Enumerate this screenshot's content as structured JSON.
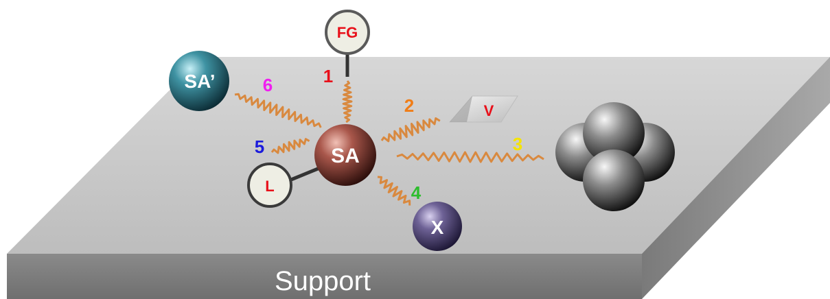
{
  "support_label": "Support",
  "atoms": {
    "sa": "SA",
    "sa_prime": "SA’",
    "fg": "FG",
    "l": "L",
    "x": "X",
    "v": "V"
  },
  "interactions": [
    {
      "number": "1",
      "color": "#e8101a"
    },
    {
      "number": "2",
      "color": "#f07d17"
    },
    {
      "number": "3",
      "color": "#f5e400"
    },
    {
      "number": "4",
      "color": "#2ebd2e"
    },
    {
      "number": "5",
      "color": "#1a1adc"
    },
    {
      "number": "6",
      "color": "#f01ef0"
    }
  ],
  "colors": {
    "wave": "#d9893f",
    "support_top": "#c9c9c9",
    "support_front": "#7d7d7d",
    "support_side": "#8f8f8f",
    "label_red": "#e8101a"
  }
}
